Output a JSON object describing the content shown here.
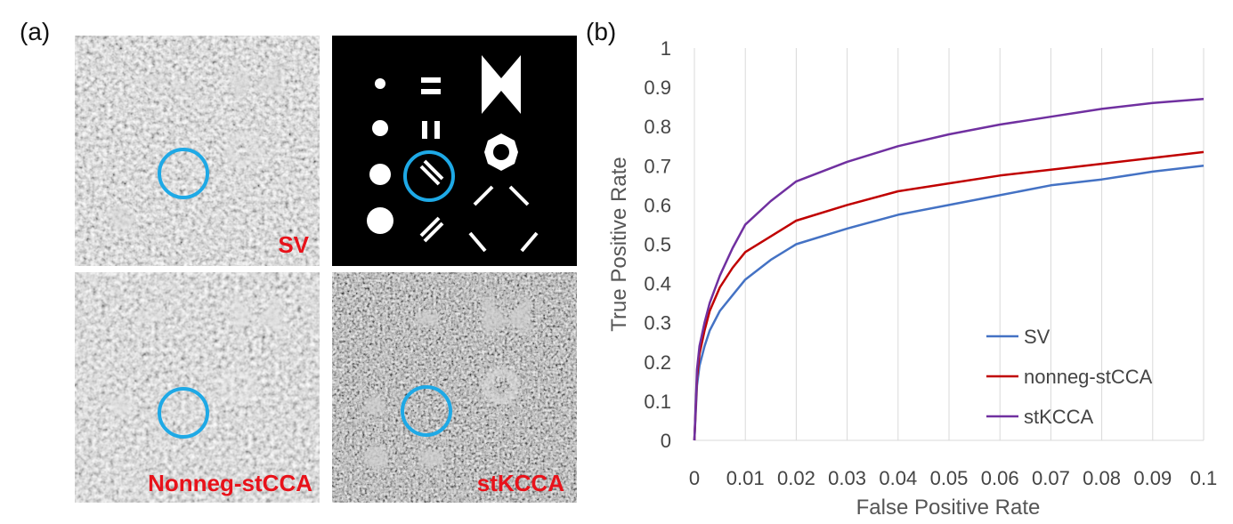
{
  "panel_a": {
    "label": "(a)",
    "tiles": [
      {
        "caption": "SV"
      },
      {
        "caption": ""
      },
      {
        "caption": "Nonneg-stCCA"
      },
      {
        "caption": "stKCCA"
      }
    ],
    "highlight_color": "#1ea9e6",
    "caption_color": "#e8121a"
  },
  "panel_b": {
    "label": "(b)"
  },
  "chart_data": {
    "type": "line",
    "xlabel": "False Positive Rate",
    "ylabel": "True Positive Rate",
    "xlim": [
      0,
      0.1
    ],
    "ylim": [
      0,
      1
    ],
    "xticks": [
      "0",
      "0.01",
      "0.02",
      "0.03",
      "0.04",
      "0.05",
      "0.06",
      "0.07",
      "0.08",
      "0.09",
      "0.1"
    ],
    "yticks": [
      "0",
      "0.1",
      "0.2",
      "0.3",
      "0.4",
      "0.5",
      "0.6",
      "0.7",
      "0.8",
      "0.9",
      "1"
    ],
    "grid": "vertical",
    "legend_position": "lower-right",
    "x": [
      0,
      0.0005,
      0.001,
      0.002,
      0.003,
      0.005,
      0.0075,
      0.01,
      0.015,
      0.02,
      0.03,
      0.04,
      0.05,
      0.06,
      0.07,
      0.08,
      0.09,
      0.1
    ],
    "series": [
      {
        "name": "SV",
        "color": "#4472c4",
        "values": [
          0,
          0.14,
          0.19,
          0.24,
          0.28,
          0.33,
          0.37,
          0.41,
          0.46,
          0.5,
          0.54,
          0.575,
          0.6,
          0.625,
          0.65,
          0.665,
          0.685,
          0.7
        ]
      },
      {
        "name": "nonneg-stCCA",
        "color": "#c00000",
        "values": [
          0,
          0.16,
          0.22,
          0.28,
          0.33,
          0.39,
          0.44,
          0.48,
          0.52,
          0.56,
          0.6,
          0.635,
          0.655,
          0.675,
          0.69,
          0.705,
          0.72,
          0.735
        ]
      },
      {
        "name": "stKCCA",
        "color": "#7030a0",
        "values": [
          0,
          0.18,
          0.24,
          0.3,
          0.35,
          0.42,
          0.49,
          0.55,
          0.61,
          0.66,
          0.71,
          0.75,
          0.78,
          0.805,
          0.825,
          0.845,
          0.86,
          0.87
        ]
      }
    ]
  }
}
